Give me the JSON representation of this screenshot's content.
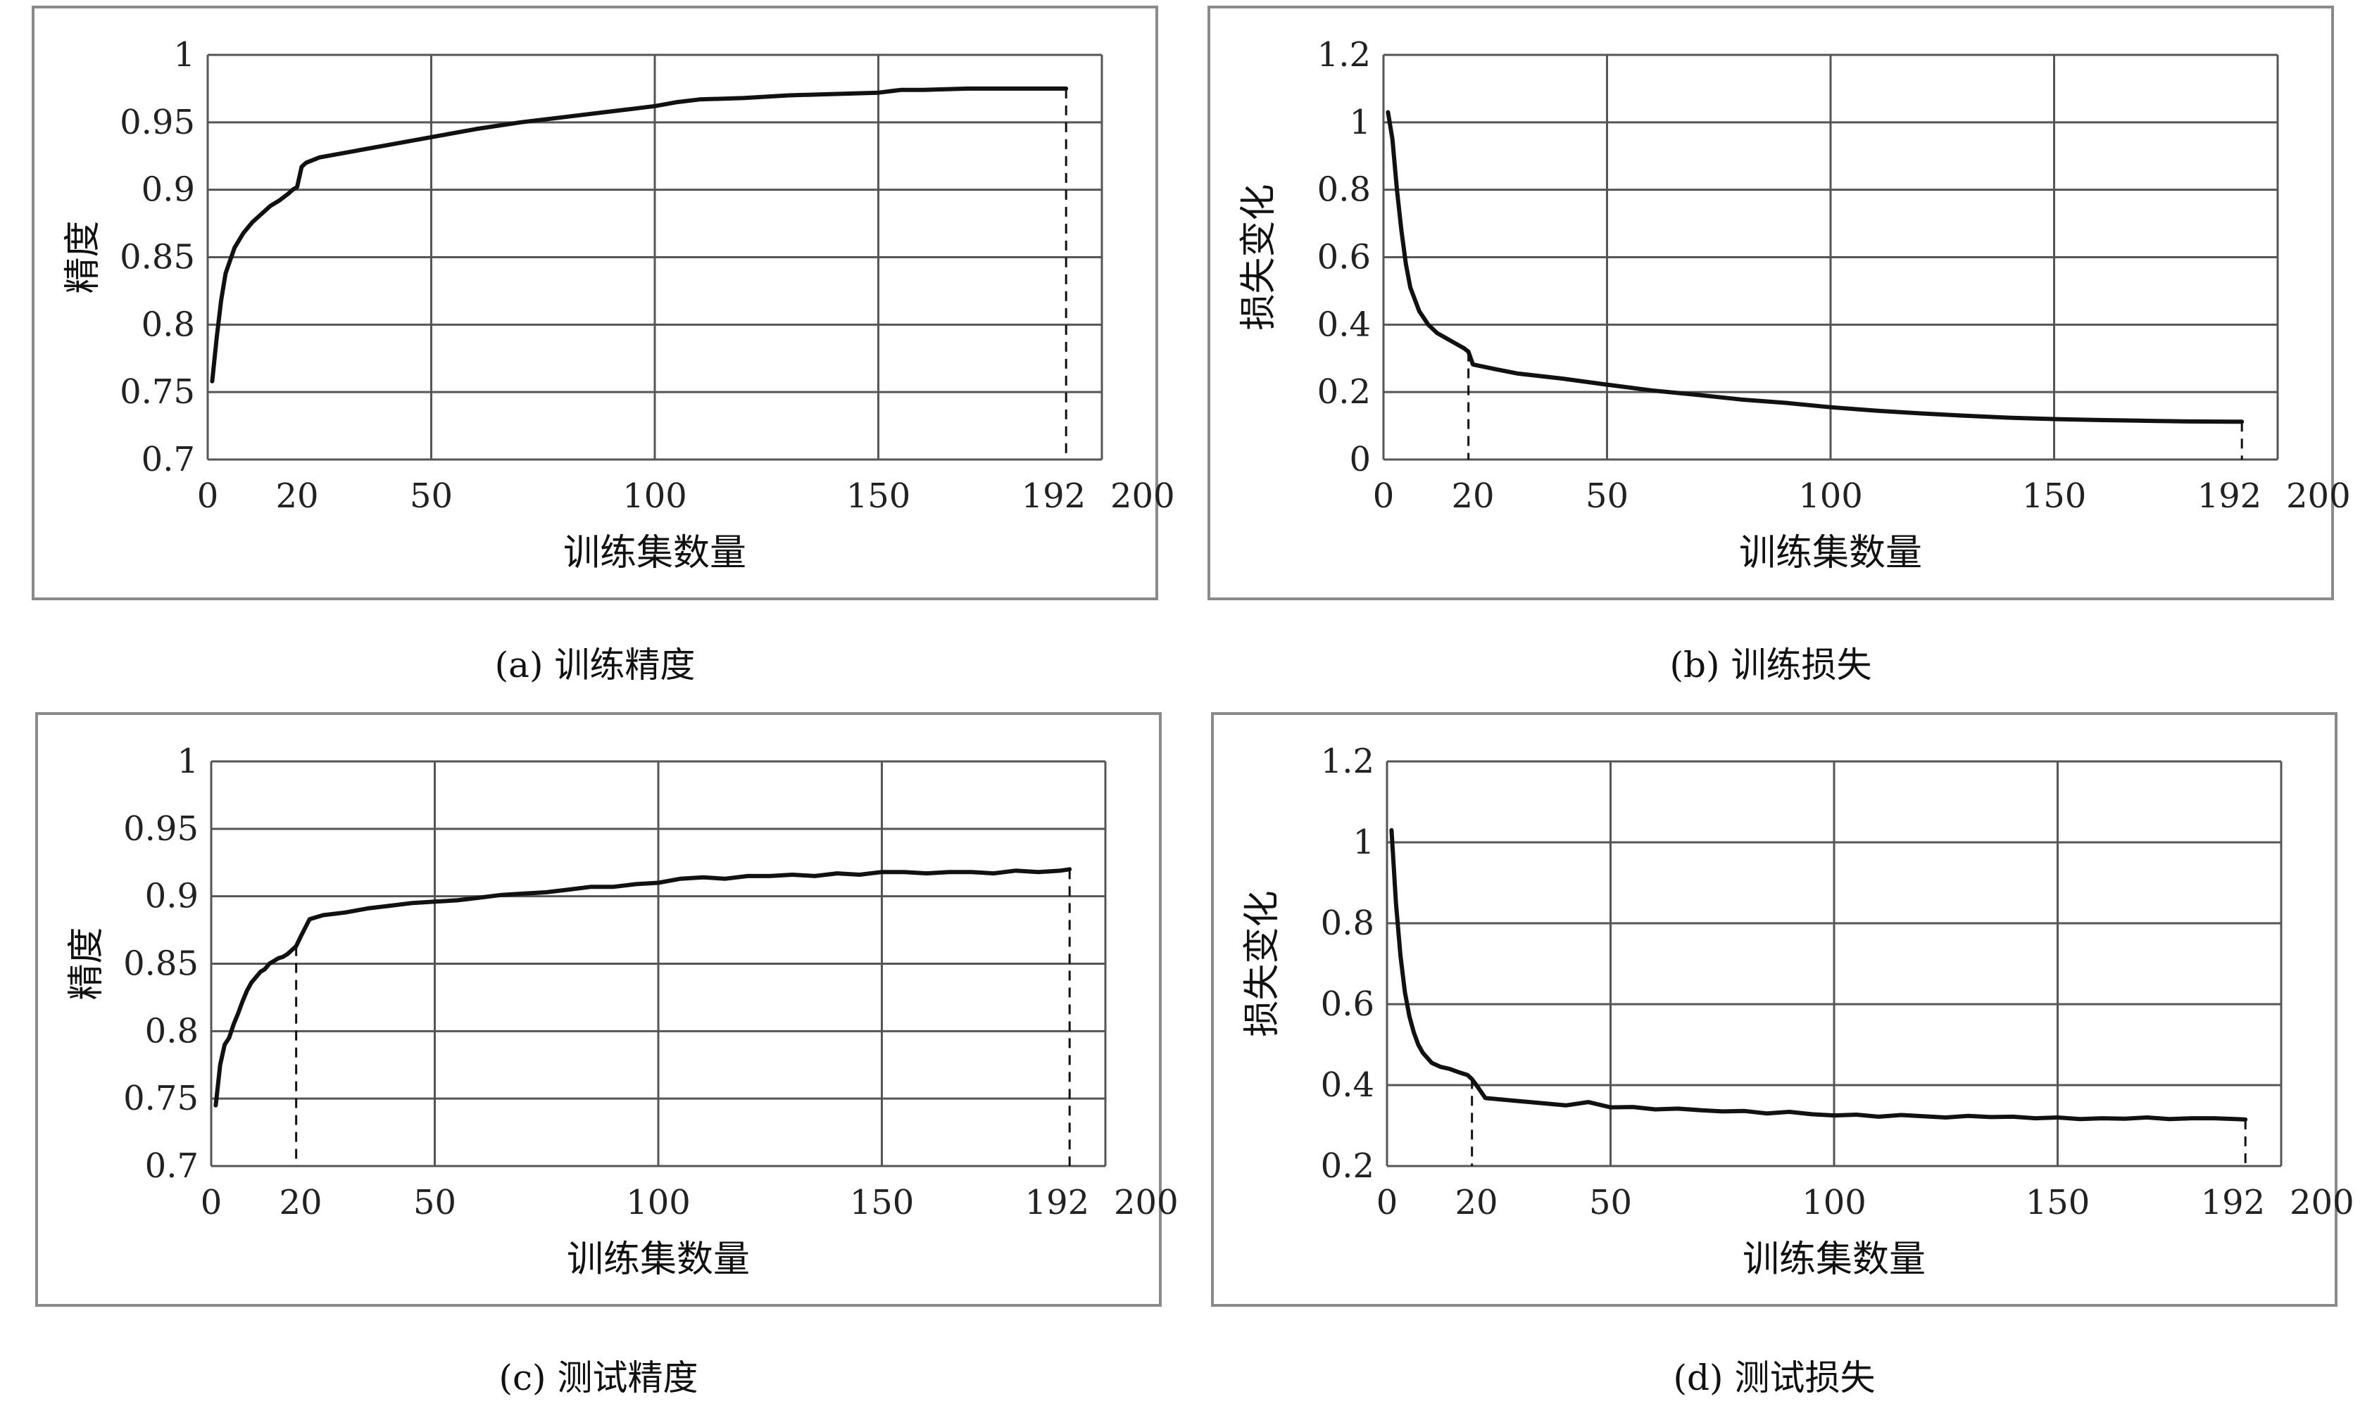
{
  "chart_data": [
    {
      "id": "a",
      "type": "line",
      "caption": "(a) 训练精度",
      "xlabel": "训练集数量",
      "ylabel": "精度",
      "xticks": [
        0,
        20,
        50,
        100,
        150,
        192,
        200
      ],
      "xlim": [
        0,
        200
      ],
      "xgrid": [
        0,
        50,
        100,
        150,
        200
      ],
      "yticks": [
        "0.7",
        "0.75",
        "0.8",
        "0.85",
        "0.9",
        "0.95",
        "1"
      ],
      "ylim": [
        0.7,
        1.0
      ],
      "ygrid": [
        0.7,
        0.75,
        0.8,
        0.85,
        0.9,
        0.95,
        1.0
      ],
      "markers": [
        192
      ],
      "series": [
        {
          "x": [
            1,
            2,
            3,
            4,
            6,
            8,
            10,
            12,
            14,
            16,
            18,
            19,
            20,
            21,
            22,
            25,
            30,
            40,
            50,
            60,
            70,
            80,
            90,
            95,
            100,
            105,
            110,
            120,
            130,
            140,
            150,
            155,
            160,
            170,
            180,
            190,
            192
          ],
          "y": [
            0.758,
            0.79,
            0.818,
            0.838,
            0.857,
            0.868,
            0.876,
            0.882,
            0.888,
            0.892,
            0.897,
            0.9,
            0.902,
            0.917,
            0.92,
            0.924,
            0.927,
            0.933,
            0.939,
            0.945,
            0.95,
            0.954,
            0.958,
            0.96,
            0.962,
            0.965,
            0.967,
            0.968,
            0.97,
            0.971,
            0.972,
            0.974,
            0.974,
            0.975,
            0.975,
            0.975,
            0.975
          ]
        }
      ]
    },
    {
      "id": "b",
      "type": "line",
      "caption": "(b) 训练损失",
      "xlabel": "训练集数量",
      "ylabel": "损失变化",
      "xticks": [
        0,
        20,
        50,
        100,
        150,
        192,
        200
      ],
      "xlim": [
        0,
        200
      ],
      "xgrid": [
        0,
        50,
        100,
        150,
        200
      ],
      "yticks": [
        "0",
        "0.2",
        "0.4",
        "0.6",
        "0.8",
        "1",
        "1.2"
      ],
      "ylim": [
        0,
        1.2
      ],
      "ygrid": [
        0,
        0.2,
        0.4,
        0.6,
        0.8,
        1.0,
        1.2
      ],
      "markers": [
        19,
        192
      ],
      "series": [
        {
          "x": [
            1,
            2,
            3,
            4,
            5,
            6,
            8,
            10,
            12,
            14,
            16,
            18,
            19,
            20,
            25,
            30,
            40,
            50,
            60,
            70,
            80,
            90,
            100,
            110,
            120,
            130,
            140,
            150,
            160,
            170,
            180,
            190,
            192
          ],
          "y": [
            1.03,
            0.95,
            0.8,
            0.68,
            0.58,
            0.51,
            0.44,
            0.4,
            0.375,
            0.36,
            0.345,
            0.33,
            0.32,
            0.282,
            0.268,
            0.255,
            0.24,
            0.222,
            0.205,
            0.192,
            0.178,
            0.168,
            0.155,
            0.145,
            0.137,
            0.13,
            0.124,
            0.12,
            0.117,
            0.115,
            0.113,
            0.112,
            0.112
          ]
        }
      ]
    },
    {
      "id": "c",
      "type": "line",
      "caption": "(c) 测试精度",
      "xlabel": "训练集数量",
      "ylabel": "精度",
      "xticks": [
        0,
        20,
        50,
        100,
        150,
        192,
        200
      ],
      "xlim": [
        0,
        200
      ],
      "xgrid": [
        0,
        50,
        100,
        150,
        200
      ],
      "yticks": [
        "0.7",
        "0.75",
        "0.8",
        "0.85",
        "0.9",
        "0.95",
        "1"
      ],
      "ylim": [
        0.7,
        1.0
      ],
      "ygrid": [
        0.7,
        0.75,
        0.8,
        0.85,
        0.9,
        0.95,
        1.0
      ],
      "markers": [
        19,
        192
      ],
      "series": [
        {
          "x": [
            1,
            2,
            3,
            4,
            5,
            6,
            7,
            8,
            9,
            10,
            11,
            12,
            13,
            14,
            15,
            16,
            17,
            18,
            19,
            20,
            22,
            25,
            30,
            35,
            40,
            45,
            50,
            55,
            60,
            65,
            70,
            75,
            80,
            85,
            90,
            95,
            100,
            105,
            110,
            115,
            120,
            125,
            130,
            135,
            140,
            145,
            150,
            155,
            160,
            165,
            170,
            175,
            180,
            185,
            190,
            192
          ],
          "y": [
            0.745,
            0.775,
            0.79,
            0.795,
            0.805,
            0.813,
            0.822,
            0.83,
            0.836,
            0.84,
            0.844,
            0.846,
            0.85,
            0.852,
            0.854,
            0.855,
            0.857,
            0.86,
            0.863,
            0.87,
            0.883,
            0.886,
            0.888,
            0.891,
            0.893,
            0.895,
            0.896,
            0.897,
            0.899,
            0.901,
            0.902,
            0.903,
            0.905,
            0.907,
            0.907,
            0.909,
            0.91,
            0.913,
            0.914,
            0.913,
            0.915,
            0.915,
            0.916,
            0.915,
            0.917,
            0.916,
            0.918,
            0.918,
            0.917,
            0.918,
            0.918,
            0.917,
            0.919,
            0.918,
            0.919,
            0.92
          ]
        }
      ]
    },
    {
      "id": "d",
      "type": "line",
      "caption": "(d) 测试损失",
      "xlabel": "训练集数量",
      "ylabel": "损失变化",
      "xticks": [
        0,
        20,
        50,
        100,
        150,
        192,
        200
      ],
      "xlim": [
        0,
        200
      ],
      "xgrid": [
        0,
        50,
        100,
        150,
        200
      ],
      "yticks": [
        "0.2",
        "0.4",
        "0.6",
        "0.8",
        "1",
        "1.2"
      ],
      "ylim": [
        0.2,
        1.2
      ],
      "ygrid": [
        0.2,
        0.4,
        0.6,
        0.8,
        1.0,
        1.2
      ],
      "markers": [
        19,
        192
      ],
      "series": [
        {
          "x": [
            1,
            2,
            3,
            4,
            5,
            6,
            7,
            8,
            10,
            12,
            14,
            16,
            18,
            19,
            20,
            22,
            25,
            30,
            35,
            40,
            45,
            50,
            55,
            60,
            65,
            70,
            75,
            80,
            85,
            90,
            95,
            100,
            105,
            110,
            115,
            120,
            125,
            130,
            135,
            140,
            145,
            150,
            155,
            160,
            165,
            170,
            175,
            180,
            185,
            190,
            192
          ],
          "y": [
            1.03,
            0.85,
            0.72,
            0.63,
            0.57,
            0.53,
            0.5,
            0.48,
            0.455,
            0.445,
            0.44,
            0.432,
            0.425,
            0.415,
            0.4,
            0.368,
            0.365,
            0.36,
            0.355,
            0.35,
            0.358,
            0.345,
            0.346,
            0.34,
            0.342,
            0.338,
            0.335,
            0.336,
            0.33,
            0.334,
            0.328,
            0.325,
            0.327,
            0.322,
            0.326,
            0.323,
            0.32,
            0.324,
            0.321,
            0.322,
            0.318,
            0.32,
            0.316,
            0.318,
            0.317,
            0.32,
            0.316,
            0.318,
            0.318,
            0.316,
            0.315
          ]
        }
      ]
    }
  ]
}
